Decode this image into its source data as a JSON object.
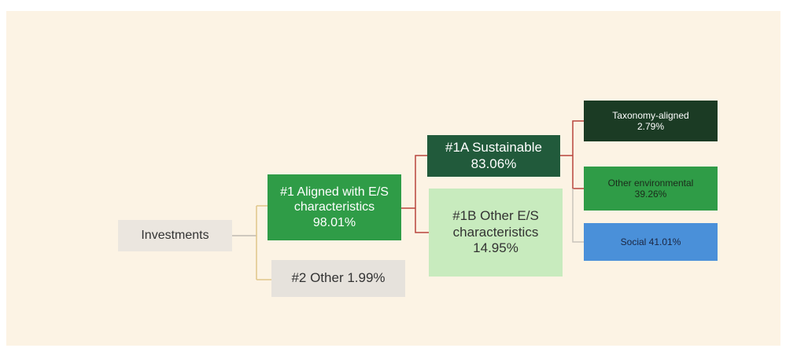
{
  "nodes": [
    {
      "label": "Investments"
    },
    {
      "label": "#1 Aligned with E/S characteristics 98.01%"
    },
    {
      "label": "#2 Other 1.99%"
    },
    {
      "label": "#1A Sustainable 83.06%"
    },
    {
      "label": "#1B Other E/S characteristics 14.95%"
    },
    {
      "label": "Taxonomy-aligned 2.79%"
    },
    {
      "label": "Other environmental 39.26%"
    },
    {
      "label": "Social 41.01%"
    }
  ]
}
